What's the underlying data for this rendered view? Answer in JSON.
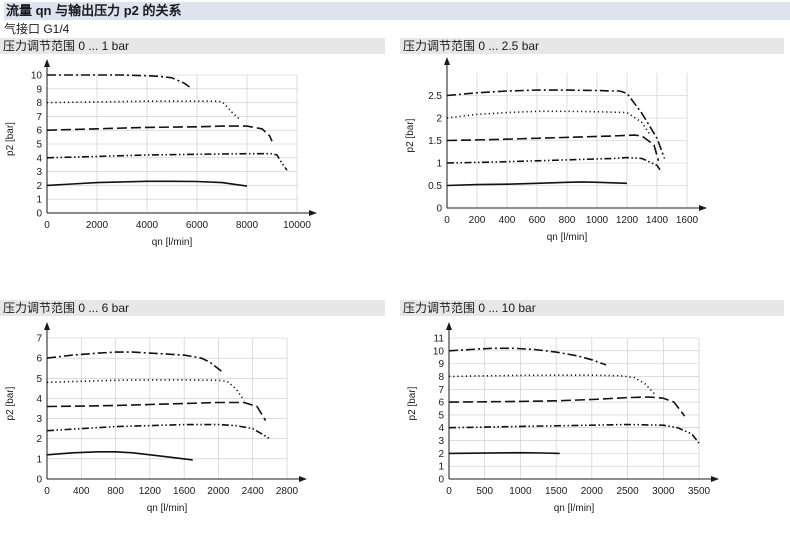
{
  "header": {
    "title": "流量 qn 与输出压力 p2 的关系",
    "subtitle": "气接口 G1/4"
  },
  "chart_data": [
    {
      "type": "line",
      "title": "压力调节范围 0 ... 1 bar",
      "xlabel": "qn [l/min]",
      "ylabel": "p2 [bar]",
      "xlim": [
        0,
        10000
      ],
      "ylim": [
        0,
        10
      ],
      "xticks": [
        0,
        2000,
        4000,
        6000,
        8000,
        10000
      ],
      "yticks": [
        0,
        1,
        2,
        3,
        4,
        5,
        6,
        7,
        8,
        9,
        10
      ],
      "grid": true,
      "series": [
        {
          "dash": "solid",
          "x": [
            0,
            1000,
            2000,
            3000,
            4000,
            5000,
            6000,
            7000,
            7600,
            8000
          ],
          "y": [
            2,
            2.1,
            2.2,
            2.25,
            2.3,
            2.3,
            2.28,
            2.2,
            2.05,
            1.95
          ]
        },
        {
          "dash": "dashdotdot",
          "x": [
            0,
            2000,
            4000,
            6000,
            8000,
            9000,
            9200,
            9400,
            9600
          ],
          "y": [
            4,
            4.1,
            4.2,
            4.25,
            4.3,
            4.3,
            4.2,
            3.6,
            3.1
          ]
        },
        {
          "dash": "longdash",
          "x": [
            0,
            2000,
            4000,
            6000,
            7000,
            8000,
            8600,
            8900,
            9000
          ],
          "y": [
            6,
            6.1,
            6.2,
            6.25,
            6.3,
            6.3,
            6.1,
            5.6,
            5.2
          ]
        },
        {
          "dash": "dot",
          "x": [
            0,
            2000,
            4000,
            6000,
            6800,
            7000,
            7100,
            7400,
            7700
          ],
          "y": [
            8,
            8.05,
            8.1,
            8.1,
            8.1,
            8.05,
            7.9,
            7.3,
            6.8
          ]
        },
        {
          "dash": "dashdot",
          "x": [
            0,
            1000,
            2000,
            3000,
            4000,
            4500,
            5000,
            5500,
            5800
          ],
          "y": [
            10,
            10,
            10,
            10,
            9.95,
            9.9,
            9.8,
            9.4,
            9.0
          ]
        }
      ]
    },
    {
      "type": "line",
      "title": "压力调节范围 0 ... 2.5 bar",
      "xlabel": "qn [l/min]",
      "ylabel": "p2 [bar]",
      "xlim": [
        0,
        1600
      ],
      "ylim": [
        0,
        3
      ],
      "xticks": [
        0,
        200,
        400,
        600,
        800,
        1000,
        1200,
        1400,
        1600
      ],
      "yticks": [
        0,
        0.5,
        1,
        1.5,
        2,
        2.5
      ],
      "grid": true,
      "series": [
        {
          "dash": "solid",
          "x": [
            0,
            200,
            400,
            600,
            800,
            900,
            1000,
            1200
          ],
          "y": [
            0.5,
            0.52,
            0.53,
            0.55,
            0.57,
            0.58,
            0.57,
            0.55
          ]
        },
        {
          "dash": "dashdotdot",
          "x": [
            0,
            300,
            600,
            900,
            1100,
            1200,
            1300,
            1400,
            1430
          ],
          "y": [
            1,
            1.02,
            1.05,
            1.08,
            1.1,
            1.12,
            1.1,
            0.95,
            0.8
          ]
        },
        {
          "dash": "longdash",
          "x": [
            0,
            300,
            600,
            900,
            1100,
            1250,
            1300,
            1380,
            1410
          ],
          "y": [
            1.5,
            1.52,
            1.55,
            1.58,
            1.6,
            1.62,
            1.6,
            1.4,
            1.05
          ]
        },
        {
          "dash": "dot",
          "x": [
            0,
            200,
            400,
            600,
            800,
            1000,
            1200,
            1300,
            1350
          ],
          "y": [
            2,
            2.08,
            2.12,
            2.15,
            2.15,
            2.14,
            2.12,
            1.9,
            1.65
          ]
        },
        {
          "dash": "dashdot",
          "x": [
            0,
            200,
            400,
            600,
            800,
            1000,
            1100,
            1150,
            1200,
            1300,
            1400,
            1450
          ],
          "y": [
            2.5,
            2.56,
            2.6,
            2.62,
            2.62,
            2.61,
            2.6,
            2.6,
            2.55,
            2.1,
            1.55,
            1.1
          ]
        }
      ]
    },
    {
      "type": "line",
      "title": "压力调节范围 0 ... 6 bar",
      "xlabel": "qn [l/min]",
      "ylabel": "p2 [bar]",
      "xlim": [
        0,
        2800
      ],
      "ylim": [
        0,
        7
      ],
      "xticks": [
        0,
        400,
        800,
        1200,
        1600,
        2000,
        2400,
        2800
      ],
      "yticks": [
        0,
        1,
        2,
        3,
        4,
        5,
        6,
        7
      ],
      "grid": true,
      "series": [
        {
          "dash": "solid",
          "x": [
            0,
            300,
            600,
            800,
            1000,
            1200,
            1400,
            1700
          ],
          "y": [
            1.2,
            1.3,
            1.35,
            1.35,
            1.3,
            1.2,
            1.1,
            0.95
          ]
        },
        {
          "dash": "dashdotdot",
          "x": [
            0,
            400,
            800,
            1200,
            1600,
            2000,
            2200,
            2400,
            2600
          ],
          "y": [
            2.4,
            2.5,
            2.6,
            2.65,
            2.7,
            2.7,
            2.65,
            2.5,
            2.0
          ]
        },
        {
          "dash": "longdash",
          "x": [
            0,
            400,
            800,
            1200,
            1600,
            2000,
            2300,
            2450,
            2550
          ],
          "y": [
            3.6,
            3.62,
            3.65,
            3.7,
            3.75,
            3.8,
            3.8,
            3.6,
            2.9
          ]
        },
        {
          "dash": "dot",
          "x": [
            0,
            400,
            800,
            1200,
            1600,
            2000,
            2100,
            2200,
            2300
          ],
          "y": [
            4.8,
            4.85,
            4.9,
            4.92,
            4.92,
            4.9,
            4.85,
            4.5,
            3.9
          ]
        },
        {
          "dash": "dashdot",
          "x": [
            0,
            300,
            600,
            800,
            1000,
            1200,
            1400,
            1600,
            1800,
            1900,
            2050
          ],
          "y": [
            6,
            6.15,
            6.25,
            6.3,
            6.3,
            6.25,
            6.2,
            6.15,
            6.0,
            5.8,
            5.3
          ]
        }
      ]
    },
    {
      "type": "line",
      "title": "压力调节范围 0 ... 10 bar",
      "xlabel": "qn [l/min]",
      "ylabel": "p2 [bar]",
      "xlim": [
        0,
        3500
      ],
      "ylim": [
        0,
        11
      ],
      "xticks": [
        0,
        500,
        1000,
        1500,
        2000,
        2500,
        3000,
        3500
      ],
      "yticks": [
        0,
        1,
        2,
        3,
        4,
        5,
        6,
        7,
        8,
        9,
        10,
        11
      ],
      "grid": true,
      "series": [
        {
          "dash": "solid",
          "x": [
            0,
            500,
            1000,
            1300,
            1550
          ],
          "y": [
            2,
            2.02,
            2.05,
            2.03,
            2.0
          ]
        },
        {
          "dash": "dashdotdot",
          "x": [
            0,
            500,
            1000,
            1500,
            2000,
            2500,
            3000,
            3200,
            3400,
            3500
          ],
          "y": [
            4,
            4.05,
            4.1,
            4.15,
            4.2,
            4.25,
            4.2,
            4.0,
            3.5,
            2.8
          ]
        },
        {
          "dash": "longdash",
          "x": [
            0,
            500,
            1000,
            1500,
            2000,
            2500,
            2800,
            3000,
            3150,
            3300
          ],
          "y": [
            6,
            6.02,
            6.05,
            6.1,
            6.2,
            6.35,
            6.4,
            6.3,
            6.0,
            4.9
          ]
        },
        {
          "dash": "dot",
          "x": [
            0,
            500,
            1000,
            1500,
            2000,
            2400,
            2600,
            2750,
            2900
          ],
          "y": [
            8,
            8.05,
            8.08,
            8.1,
            8.1,
            8.05,
            7.9,
            7.4,
            6.5
          ]
        },
        {
          "dash": "dashdot",
          "x": [
            0,
            300,
            600,
            900,
            1200,
            1500,
            1800,
            2000,
            2200
          ],
          "y": [
            10,
            10.1,
            10.2,
            10.2,
            10.1,
            9.9,
            9.6,
            9.3,
            8.9
          ]
        }
      ]
    }
  ]
}
